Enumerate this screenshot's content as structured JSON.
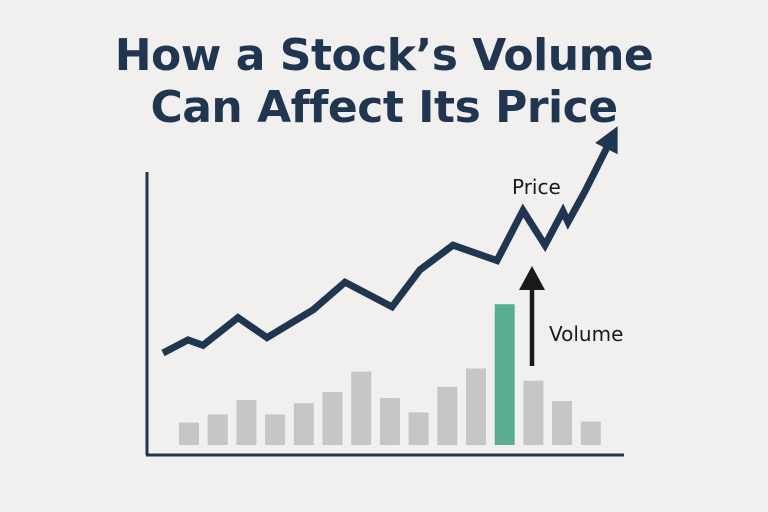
{
  "chart_data": {
    "type": "bar",
    "title_lines": [
      "How a Stock’s Volume",
      "Can Affect Its Price"
    ],
    "annotations": {
      "price_label": "Price",
      "volume_label": "Volume"
    },
    "xlabel": "",
    "ylabel": "",
    "grid": false,
    "legend": "none",
    "volume": {
      "values": [
        2.2,
        3.0,
        4.4,
        3.0,
        4.1,
        5.2,
        7.2,
        4.6,
        3.2,
        5.7,
        7.5,
        13.8,
        6.3,
        4.3,
        2.3
      ],
      "highlight_index": 11,
      "colors": {
        "normal": "#c6c6c6",
        "highlight": "#5aae90"
      }
    },
    "price": {
      "values": [
        10.0,
        11.7,
        11.0,
        14.6,
        12.0,
        15.6,
        19.2,
        16.0,
        20.8,
        24.0,
        22.0,
        28.5,
        24.0,
        28.4,
        27.0,
        31.0,
        38.0
      ],
      "color": "#1f3550"
    },
    "volume_arrow_color": "#1a1a1a",
    "axis_color": "#1f3550"
  }
}
